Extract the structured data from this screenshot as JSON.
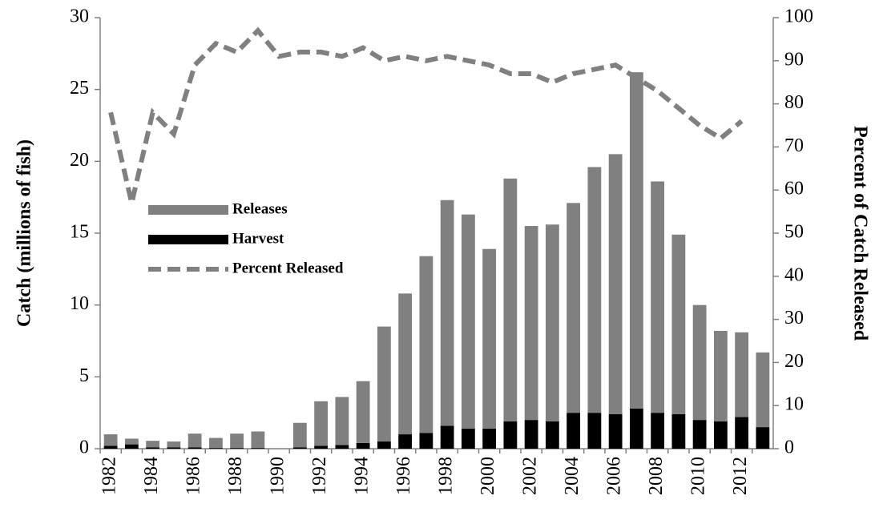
{
  "chart_data": {
    "type": "bar",
    "categories": [
      "1982",
      null,
      "1984",
      null,
      "1986",
      null,
      "1988",
      null,
      "1990",
      null,
      "1992",
      null,
      "1994",
      null,
      "1996",
      null,
      "1998",
      null,
      "2000",
      null,
      "2002",
      null,
      "2004",
      null,
      "2006",
      null,
      "2008",
      null,
      "2010",
      null,
      "2012",
      null
    ],
    "y_label": "Catch (millions of fish)",
    "y2_label": "Percent of Catch Released",
    "series": [
      {
        "name": "Releases",
        "type": "bar",
        "color": "#808080",
        "values": [
          0.8,
          0.4,
          0.45,
          0.4,
          0.95,
          0.7,
          1.0,
          1.15,
          0,
          1.7,
          3.1,
          3.35,
          4.3,
          8.0,
          9.8,
          12.3,
          15.7,
          14.9,
          12.5,
          16.9,
          13.5,
          13.7,
          14.6,
          17.1,
          18.1,
          23.4,
          16.1,
          12.5,
          8.0,
          6.3,
          5.9,
          5.2
        ]
      },
      {
        "name": "Harvest",
        "type": "bar",
        "color": "#000000",
        "values": [
          0.2,
          0.3,
          0.1,
          0.1,
          0.1,
          0.05,
          0.05,
          0.05,
          0,
          0.1,
          0.2,
          0.25,
          0.4,
          0.5,
          1.0,
          1.1,
          1.6,
          1.4,
          1.4,
          1.9,
          2.0,
          1.9,
          2.5,
          2.5,
          2.4,
          2.8,
          2.5,
          2.4,
          2.0,
          1.9,
          2.2,
          1.5
        ]
      },
      {
        "name": "Percent Released",
        "type": "line",
        "axis": "y2",
        "color": "#808080",
        "values": [
          78,
          57,
          78,
          73,
          89,
          94,
          92,
          97,
          91,
          92,
          92,
          91,
          93,
          90,
          91,
          90,
          91,
          90,
          89,
          87,
          87,
          85,
          87,
          88,
          89,
          86,
          83,
          79,
          75,
          72,
          76,
          null
        ]
      }
    ],
    "ylim": [
      0,
      30
    ],
    "yticks": [
      0,
      5,
      10,
      15,
      20,
      25,
      30
    ],
    "y2lim": [
      0,
      100
    ],
    "y2ticks": [
      0,
      10,
      20,
      30,
      40,
      50,
      60,
      70,
      80,
      90,
      100
    ],
    "stacked": true,
    "grid": false,
    "legend": "left"
  }
}
